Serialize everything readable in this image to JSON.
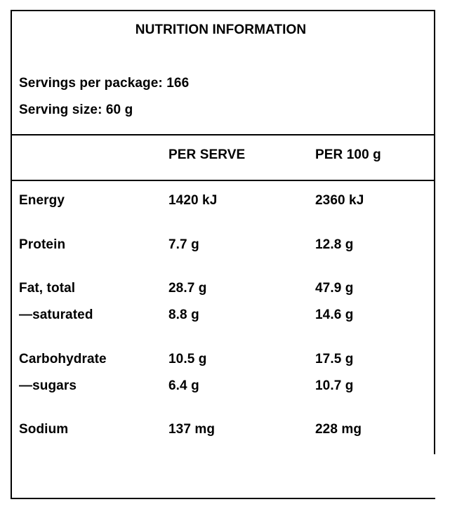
{
  "panel": {
    "title": "NUTRITION INFORMATION",
    "servings_per_package": "Servings per package: 166",
    "serving_size": "Serving size: 60 g"
  },
  "table": {
    "headers": {
      "per_serve": "PER SERVE",
      "per_100g": "PER 100 g"
    },
    "rows": [
      {
        "name": "Energy",
        "per_serve": "1420 kJ",
        "per_100g": "2360 kJ"
      },
      {
        "name": "Protein",
        "per_serve": "7.7 g",
        "per_100g": "12.8 g"
      },
      {
        "name": "Fat, total",
        "per_serve": "28.7 g",
        "per_100g": "47.9 g"
      },
      {
        "name": "—saturated",
        "per_serve": "8.8 g",
        "per_100g": "14.6 g"
      },
      {
        "name": "Carbohydrate",
        "per_serve": "10.5 g",
        "per_100g": "17.5 g"
      },
      {
        "name": "—sugars",
        "per_serve": "6.4 g",
        "per_100g": "10.7 g"
      },
      {
        "name": "Sodium",
        "per_serve": "137 mg",
        "per_100g": "228 mg"
      }
    ]
  }
}
